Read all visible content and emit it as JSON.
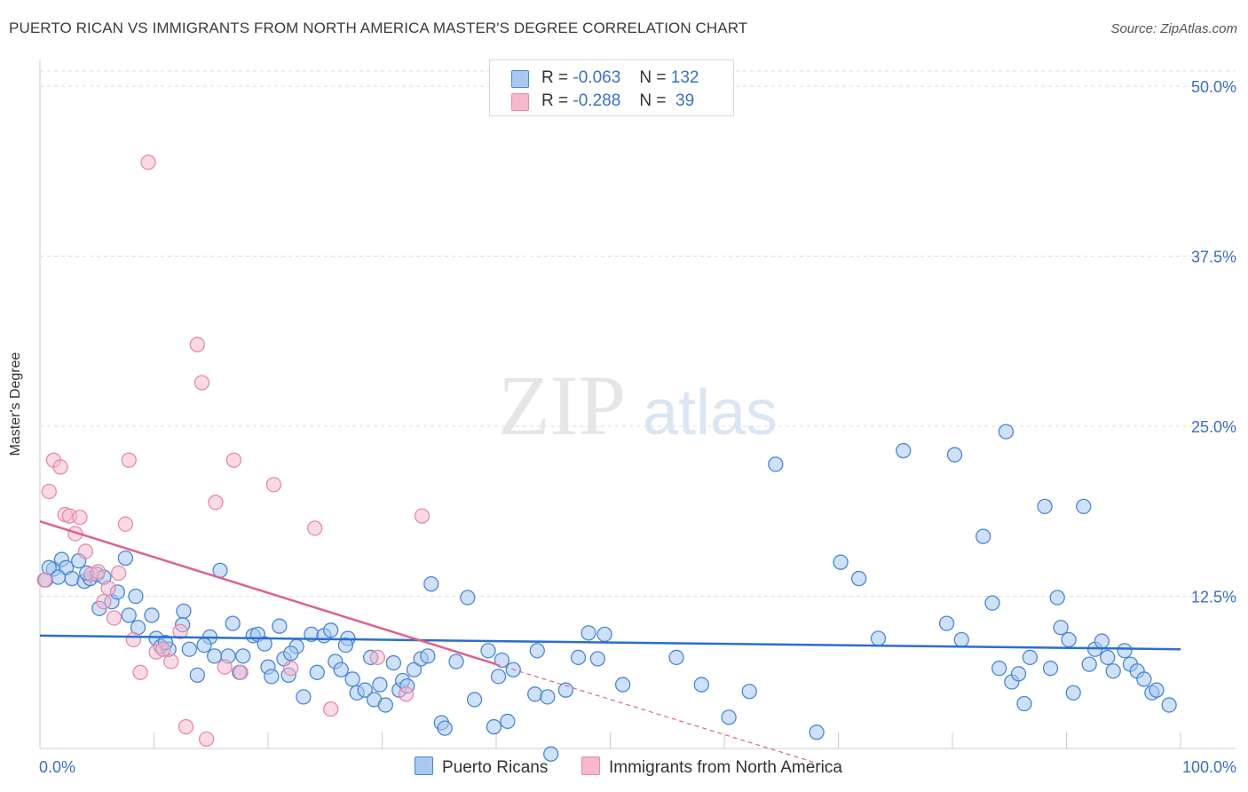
{
  "title": "PUERTO RICAN VS IMMIGRANTS FROM NORTH AMERICA MASTER'S DEGREE CORRELATION CHART",
  "source": "Source: ZipAtlas.com",
  "watermark": {
    "zip": "ZIP",
    "atlas": "atlas"
  },
  "colors": {
    "blue_fill": "#a8c8f0",
    "blue_stroke": "#4a86d8",
    "blue_line": "#2a6fce",
    "pink_fill": "#f5b8cc",
    "pink_stroke": "#e889a8",
    "pink_line": "#e0608f",
    "tick_text": "#3a6fc4",
    "grid": "#dddddd"
  },
  "legend": {
    "rows": [
      {
        "r_label": "R =",
        "r_value": "-0.063",
        "n_label": "N =",
        "n_value": "132"
      },
      {
        "r_label": "R =",
        "r_value": "-0.288",
        "n_label": "N =",
        "n_value": " 39"
      }
    ]
  },
  "bottom_legend": {
    "series1": "Puerto Ricans",
    "series2": "Immigrants from North America"
  },
  "chart_data": {
    "type": "scatter",
    "title": "PUERTO RICAN VS IMMIGRANTS FROM NORTH AMERICA MASTER'S DEGREE CORRELATION CHART",
    "xlabel": "",
    "ylabel": "Master's Degree",
    "xlim": [
      0,
      100
    ],
    "ylim": [
      0,
      50
    ],
    "x_tick_labels": [
      "0.0%",
      "100.0%"
    ],
    "y_ticks": [
      12.5,
      25.0,
      37.5,
      50.0
    ],
    "y_tick_labels": [
      "12.5%",
      "25.0%",
      "37.5%",
      "50.0%"
    ],
    "grid": true,
    "legend_position": "top-center",
    "series": [
      {
        "name": "Puerto Ricans",
        "R": -0.063,
        "N": 132,
        "trend": {
          "x": [
            0,
            100
          ],
          "y": [
            9.6,
            8.6
          ]
        },
        "points": [
          [
            0.5,
            13.7
          ],
          [
            1.2,
            14.5
          ],
          [
            1.9,
            15.2
          ],
          [
            2.3,
            14.6
          ],
          [
            2.8,
            13.8
          ],
          [
            3.4,
            15.1
          ],
          [
            3.9,
            13.6
          ],
          [
            4.4,
            13.8
          ],
          [
            5.0,
            14.1
          ],
          [
            5.6,
            13.9
          ],
          [
            5.2,
            11.6
          ],
          [
            6.3,
            12.1
          ],
          [
            7.5,
            15.3
          ],
          [
            8.4,
            12.5
          ],
          [
            7.8,
            11.1
          ],
          [
            8.6,
            10.2
          ],
          [
            9.8,
            11.1
          ],
          [
            10.2,
            9.4
          ],
          [
            10.6,
            8.8
          ],
          [
            11.3,
            8.6
          ],
          [
            12.6,
            11.4
          ],
          [
            12.5,
            10.4
          ],
          [
            13.1,
            8.6
          ],
          [
            13.8,
            6.7
          ],
          [
            14.9,
            9.5
          ],
          [
            15.3,
            8.1
          ],
          [
            15.8,
            14.4
          ],
          [
            16.5,
            8.1
          ],
          [
            16.9,
            10.5
          ],
          [
            17.5,
            6.9
          ],
          [
            17.8,
            8.1
          ],
          [
            18.7,
            9.6
          ],
          [
            19.1,
            9.7
          ],
          [
            20.0,
            7.3
          ],
          [
            20.3,
            6.6
          ],
          [
            21.0,
            10.3
          ],
          [
            21.4,
            7.9
          ],
          [
            21.8,
            6.7
          ],
          [
            22.5,
            8.8
          ],
          [
            23.1,
            5.1
          ],
          [
            23.8,
            9.7
          ],
          [
            24.3,
            6.9
          ],
          [
            24.9,
            9.6
          ],
          [
            25.5,
            10.0
          ],
          [
            25.9,
            7.7
          ],
          [
            26.4,
            7.1
          ],
          [
            27.0,
            9.4
          ],
          [
            27.4,
            6.4
          ],
          [
            27.8,
            5.4
          ],
          [
            28.5,
            5.6
          ],
          [
            29.0,
            8.0
          ],
          [
            29.3,
            4.9
          ],
          [
            29.8,
            6.0
          ],
          [
            30.3,
            4.5
          ],
          [
            31.0,
            7.6
          ],
          [
            31.5,
            5.6
          ],
          [
            31.8,
            6.3
          ],
          [
            32.2,
            5.9
          ],
          [
            32.8,
            7.1
          ],
          [
            33.4,
            7.9
          ],
          [
            34.0,
            8.1
          ],
          [
            34.3,
            13.4
          ],
          [
            35.2,
            3.2
          ],
          [
            35.5,
            2.8
          ],
          [
            36.5,
            7.7
          ],
          [
            37.5,
            12.4
          ],
          [
            38.1,
            4.9
          ],
          [
            39.3,
            8.5
          ],
          [
            39.8,
            2.9
          ],
          [
            40.2,
            6.6
          ],
          [
            40.5,
            7.8
          ],
          [
            41.0,
            3.3
          ],
          [
            41.5,
            7.1
          ],
          [
            43.4,
            5.3
          ],
          [
            43.6,
            8.5
          ],
          [
            44.5,
            5.1
          ],
          [
            44.8,
            0.9
          ],
          [
            46.1,
            5.6
          ],
          [
            47.2,
            8.0
          ],
          [
            48.1,
            9.8
          ],
          [
            48.9,
            7.9
          ],
          [
            49.5,
            9.7
          ],
          [
            51.1,
            6.0
          ],
          [
            55.8,
            8.0
          ],
          [
            58.0,
            6.0
          ],
          [
            60.4,
            3.6
          ],
          [
            62.2,
            5.5
          ],
          [
            64.5,
            22.2
          ],
          [
            68.1,
            2.5
          ],
          [
            70.2,
            15.0
          ],
          [
            71.8,
            13.8
          ],
          [
            73.5,
            9.4
          ],
          [
            75.7,
            23.2
          ],
          [
            79.5,
            10.5
          ],
          [
            80.2,
            22.9
          ],
          [
            80.8,
            9.3
          ],
          [
            82.7,
            16.9
          ],
          [
            83.5,
            12.0
          ],
          [
            84.1,
            7.2
          ],
          [
            84.7,
            24.6
          ],
          [
            85.2,
            6.2
          ],
          [
            85.8,
            6.8
          ],
          [
            86.3,
            4.6
          ],
          [
            86.8,
            8.0
          ],
          [
            88.1,
            19.1
          ],
          [
            88.6,
            7.2
          ],
          [
            89.2,
            12.4
          ],
          [
            89.5,
            10.2
          ],
          [
            90.2,
            9.3
          ],
          [
            90.6,
            5.4
          ],
          [
            91.5,
            19.1
          ],
          [
            92.0,
            7.5
          ],
          [
            92.5,
            8.6
          ],
          [
            93.1,
            9.2
          ],
          [
            93.6,
            8.0
          ],
          [
            94.1,
            7.0
          ],
          [
            95.1,
            8.5
          ],
          [
            95.6,
            7.5
          ],
          [
            96.2,
            7.0
          ],
          [
            96.8,
            6.4
          ],
          [
            97.5,
            5.4
          ],
          [
            97.9,
            5.6
          ],
          [
            99.0,
            4.5
          ],
          [
            0.8,
            14.6
          ],
          [
            1.6,
            13.9
          ],
          [
            4.1,
            14.2
          ],
          [
            6.8,
            12.8
          ],
          [
            11.0,
            9.1
          ],
          [
            14.4,
            8.9
          ],
          [
            19.7,
            9.0
          ],
          [
            22.0,
            8.3
          ],
          [
            26.8,
            8.9
          ]
        ]
      },
      {
        "name": "Immigrants from North America",
        "R": -0.288,
        "N": 39,
        "trend": {
          "x": [
            0,
            40
          ],
          "y": [
            18.0,
            7.5
          ],
          "dashed_extension": {
            "x": [
              40,
              69
            ],
            "y": [
              7.5,
              0.0
            ]
          }
        },
        "points": [
          [
            0.4,
            13.7
          ],
          [
            0.8,
            20.2
          ],
          [
            1.2,
            22.5
          ],
          [
            1.8,
            22.0
          ],
          [
            2.2,
            18.5
          ],
          [
            2.6,
            18.4
          ],
          [
            3.1,
            17.1
          ],
          [
            3.5,
            18.3
          ],
          [
            4.0,
            15.8
          ],
          [
            4.5,
            14.1
          ],
          [
            5.1,
            14.3
          ],
          [
            5.6,
            12.1
          ],
          [
            6.0,
            13.1
          ],
          [
            6.5,
            10.9
          ],
          [
            6.9,
            14.2
          ],
          [
            7.5,
            17.8
          ],
          [
            7.8,
            22.5
          ],
          [
            8.2,
            9.3
          ],
          [
            8.8,
            6.9
          ],
          [
            9.5,
            44.4
          ],
          [
            10.2,
            8.4
          ],
          [
            10.8,
            8.6
          ],
          [
            11.5,
            7.7
          ],
          [
            12.3,
            9.9
          ],
          [
            12.8,
            2.9
          ],
          [
            13.8,
            31.0
          ],
          [
            14.2,
            28.2
          ],
          [
            14.6,
            2.0
          ],
          [
            15.4,
            19.4
          ],
          [
            16.2,
            7.3
          ],
          [
            17.0,
            22.5
          ],
          [
            17.6,
            6.9
          ],
          [
            20.5,
            20.7
          ],
          [
            22.0,
            7.2
          ],
          [
            24.1,
            17.5
          ],
          [
            25.5,
            4.2
          ],
          [
            29.6,
            8.0
          ],
          [
            32.1,
            5.3
          ],
          [
            33.5,
            18.4
          ]
        ]
      }
    ]
  }
}
